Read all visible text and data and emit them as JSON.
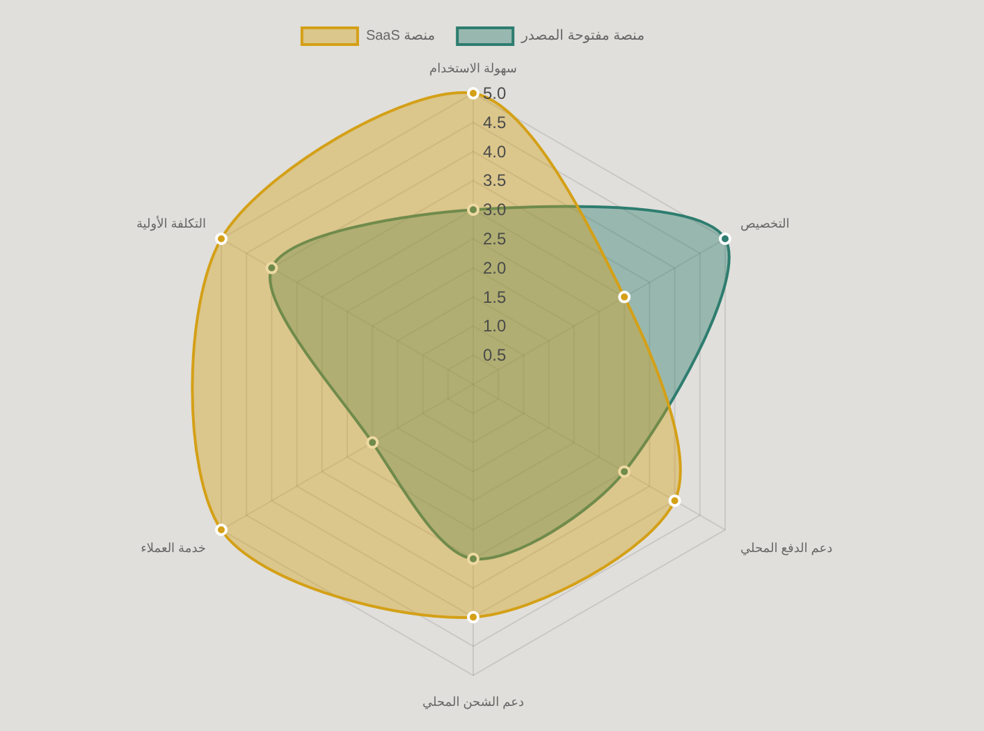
{
  "chart_data": {
    "type": "radar",
    "categories": [
      "سهولة الاستخدام",
      "التخصيص",
      "دعم الدفع المحلي",
      "دعم الشحن المحلي",
      "خدمة العملاء",
      "التكلفة الأولية"
    ],
    "series": [
      {
        "name": "منصة SaaS",
        "color": "#d4a017",
        "values": [
          5,
          3,
          4,
          4,
          5,
          5
        ]
      },
      {
        "name": "منصة مفتوحة المصدر",
        "color": "#2e7d6f",
        "values": [
          3,
          5,
          3,
          3,
          2,
          4
        ]
      }
    ],
    "ylim": [
      0,
      5
    ],
    "yticks": [
      0.5,
      {
        "value": 1,
        "label": "1.0"
      },
      1.5,
      {
        "value": 2,
        "label": "2.0"
      },
      2.5,
      {
        "value": 3,
        "label": "3.0"
      },
      3.5,
      {
        "value": 4,
        "label": "4.0"
      },
      4.5,
      {
        "value": 5,
        "label": "5.0"
      }
    ],
    "grid": true,
    "legend": "top",
    "marker": "circle"
  }
}
